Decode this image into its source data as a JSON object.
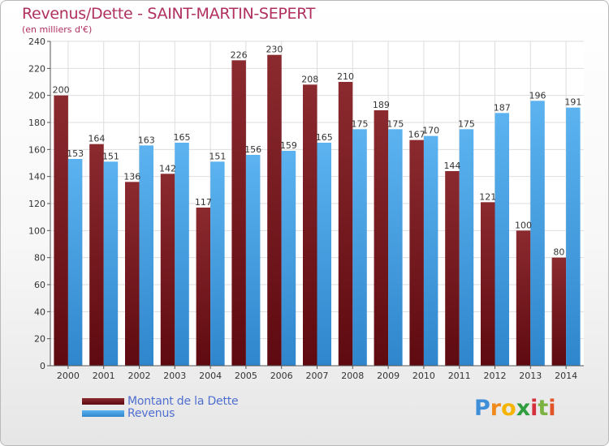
{
  "chart_data": {
    "type": "bar",
    "title": "Revenus/Dette - SAINT-MARTIN-SEPERT",
    "subtitle": "(en milliers d'€)",
    "categories": [
      "2000",
      "2001",
      "2002",
      "2003",
      "2004",
      "2005",
      "2006",
      "2007",
      "2008",
      "2009",
      "2010",
      "2011",
      "2012",
      "2013",
      "2014"
    ],
    "series": [
      {
        "name": "Montant de la Dette",
        "color": "#7a1d22",
        "values": [
          200,
          164,
          136,
          142,
          117,
          226,
          230,
          208,
          210,
          189,
          167,
          144,
          121,
          100,
          80
        ]
      },
      {
        "name": "Revenus",
        "color": "#4aa3e6",
        "values": [
          153,
          151,
          163,
          165,
          151,
          156,
          159,
          165,
          175,
          175,
          170,
          175,
          187,
          196,
          191
        ]
      }
    ],
    "ylim": [
      0,
      240
    ],
    "yticks": [
      0,
      20,
      40,
      60,
      80,
      100,
      120,
      140,
      160,
      180,
      200,
      220,
      240
    ],
    "grid": true,
    "legend_position": "bottom-left"
  },
  "logo": {
    "letters": [
      {
        "char": "P",
        "color": "#3f8fd8"
      },
      {
        "char": "r",
        "color": "#f08a1c"
      },
      {
        "char": "o",
        "color": "#f4b400"
      },
      {
        "char": "x",
        "color": "#2e9e3e"
      },
      {
        "char": "i",
        "color": "#d4313c"
      },
      {
        "char": "t",
        "color": "#7cb342"
      },
      {
        "char": "i",
        "color": "#e1542a"
      }
    ]
  }
}
